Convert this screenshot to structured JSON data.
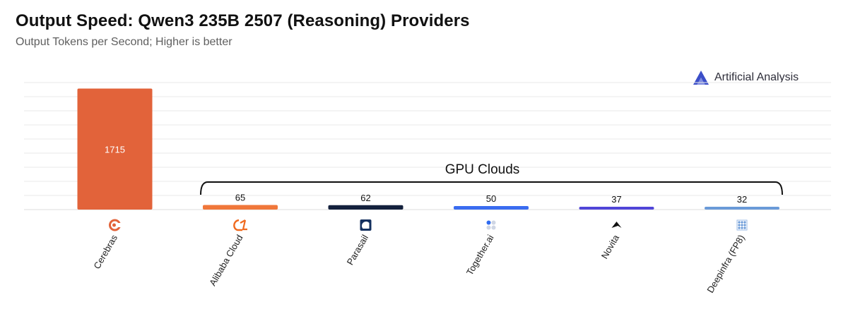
{
  "header": {
    "title": "Output Speed: Qwen3 235B 2507 (Reasoning) Providers",
    "subtitle": "Output Tokens per Second; Higher is better"
  },
  "brand": {
    "name": "Artificial Analysis",
    "icon": "artificial-analysis-logo-icon"
  },
  "chart_data": {
    "type": "bar",
    "title": "Output Speed: Qwen3 235B 2507 (Reasoning) Providers",
    "subtitle": "Output Tokens per Second; Higher is better",
    "xlabel": "",
    "ylabel": "",
    "ylim": [
      0,
      1800
    ],
    "grid": true,
    "categories": [
      "Cerebras",
      "Alibaba Cloud",
      "Parasail",
      "Together.ai",
      "Novita",
      "Deepinfra (FP8)"
    ],
    "values": [
      1715,
      65,
      62,
      50,
      37,
      32
    ],
    "colors": [
      "#e2633a",
      "#f0773a",
      "#14213d",
      "#3a6cf0",
      "#5045d8",
      "#6a9ad8"
    ],
    "icons": [
      "cerebras-logo-icon",
      "alibaba-cloud-logo-icon",
      "parasail-logo-icon",
      "together-ai-logo-icon",
      "novita-logo-icon",
      "deepinfra-logo-icon"
    ],
    "annotations": [
      {
        "text": "GPU Clouds",
        "type": "bracket",
        "from_category": "Alibaba Cloud",
        "to_category": "Deepinfra (FP8)"
      }
    ]
  }
}
